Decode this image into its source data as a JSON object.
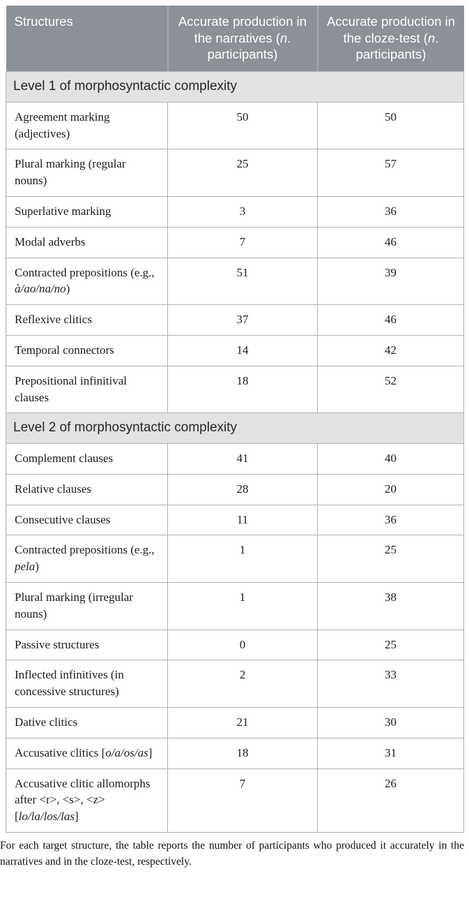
{
  "colors": {
    "header_bg": "#8b9196",
    "header_text": "#ffffff",
    "section_bg": "#e2e2e1",
    "border": "#b0b0b0",
    "section_border": "#b3b3b3",
    "header_sep": "#a4aaae",
    "text": "#1c1c1c",
    "body_bg": "#ffffff"
  },
  "table": {
    "columns": [
      {
        "name": "structures",
        "label_segments": [
          {
            "t": "Structures"
          }
        ]
      },
      {
        "name": "narratives",
        "label_segments": [
          {
            "t": "Accurate production in the narratives ("
          },
          {
            "t": "n",
            "i": true
          },
          {
            "t": ". participants)"
          }
        ]
      },
      {
        "name": "cloze",
        "label_segments": [
          {
            "t": "Accurate production in the cloze-test ("
          },
          {
            "t": "n",
            "i": true
          },
          {
            "t": ". participants)"
          }
        ]
      }
    ],
    "sections": [
      {
        "title": "Level 1 of morphosyntactic complexity",
        "rows": [
          {
            "structure": [
              {
                "t": "Agreement marking (adjectives)"
              }
            ],
            "narratives": "50",
            "cloze": "50"
          },
          {
            "structure": [
              {
                "t": "Plural marking (regular nouns)"
              }
            ],
            "narratives": "25",
            "cloze": "57"
          },
          {
            "structure": [
              {
                "t": "Superlative marking"
              }
            ],
            "narratives": "3",
            "cloze": "36"
          },
          {
            "structure": [
              {
                "t": "Modal adverbs"
              }
            ],
            "narratives": "7",
            "cloze": "46"
          },
          {
            "structure": [
              {
                "t": "Contracted prepositions (e.g., "
              },
              {
                "t": "à/ao/na/no",
                "i": true
              },
              {
                "t": ")"
              }
            ],
            "narratives": "51",
            "cloze": "39"
          },
          {
            "structure": [
              {
                "t": "Reflexive clitics"
              }
            ],
            "narratives": "37",
            "cloze": "46"
          },
          {
            "structure": [
              {
                "t": "Temporal connectors"
              }
            ],
            "narratives": "14",
            "cloze": "42"
          },
          {
            "structure": [
              {
                "t": "Prepositional infinitival clauses"
              }
            ],
            "narratives": "18",
            "cloze": "52"
          }
        ]
      },
      {
        "title": "Level 2 of morphosyntactic complexity",
        "rows": [
          {
            "structure": [
              {
                "t": "Complement clauses"
              }
            ],
            "narratives": "41",
            "cloze": "40"
          },
          {
            "structure": [
              {
                "t": "Relative clauses"
              }
            ],
            "narratives": "28",
            "cloze": "20"
          },
          {
            "structure": [
              {
                "t": "Consecutive clauses"
              }
            ],
            "narratives": "11",
            "cloze": "36"
          },
          {
            "structure": [
              {
                "t": "Contracted prepositions (e.g., "
              },
              {
                "t": "pela",
                "i": true
              },
              {
                "t": ")"
              }
            ],
            "narratives": "1",
            "cloze": "25"
          },
          {
            "structure": [
              {
                "t": "Plural marking (irregular nouns)"
              }
            ],
            "narratives": "1",
            "cloze": "38"
          },
          {
            "structure": [
              {
                "t": "Passive structures"
              }
            ],
            "narratives": "0",
            "cloze": "25"
          },
          {
            "structure": [
              {
                "t": "Inflected infinitives (in concessive structures)"
              }
            ],
            "narratives": "2",
            "cloze": "33"
          },
          {
            "structure": [
              {
                "t": "Dative clitics"
              }
            ],
            "narratives": "21",
            "cloze": "30"
          },
          {
            "structure": [
              {
                "t": "Accusative clitics ["
              },
              {
                "t": "o/a/os/as",
                "i": true
              },
              {
                "t": "]"
              }
            ],
            "narratives": "18",
            "cloze": "31"
          },
          {
            "structure": [
              {
                "t": "Accusative clitic allomorphs after <r>, <s>, <z> ["
              },
              {
                "t": "lo/la/los/las",
                "i": true
              },
              {
                "t": "]"
              }
            ],
            "narratives": "7",
            "cloze": "26"
          }
        ]
      }
    ],
    "footnote": "For each target structure, the table reports the number of participants who produced it accurately in the narratives and in the cloze-test, respectively."
  }
}
